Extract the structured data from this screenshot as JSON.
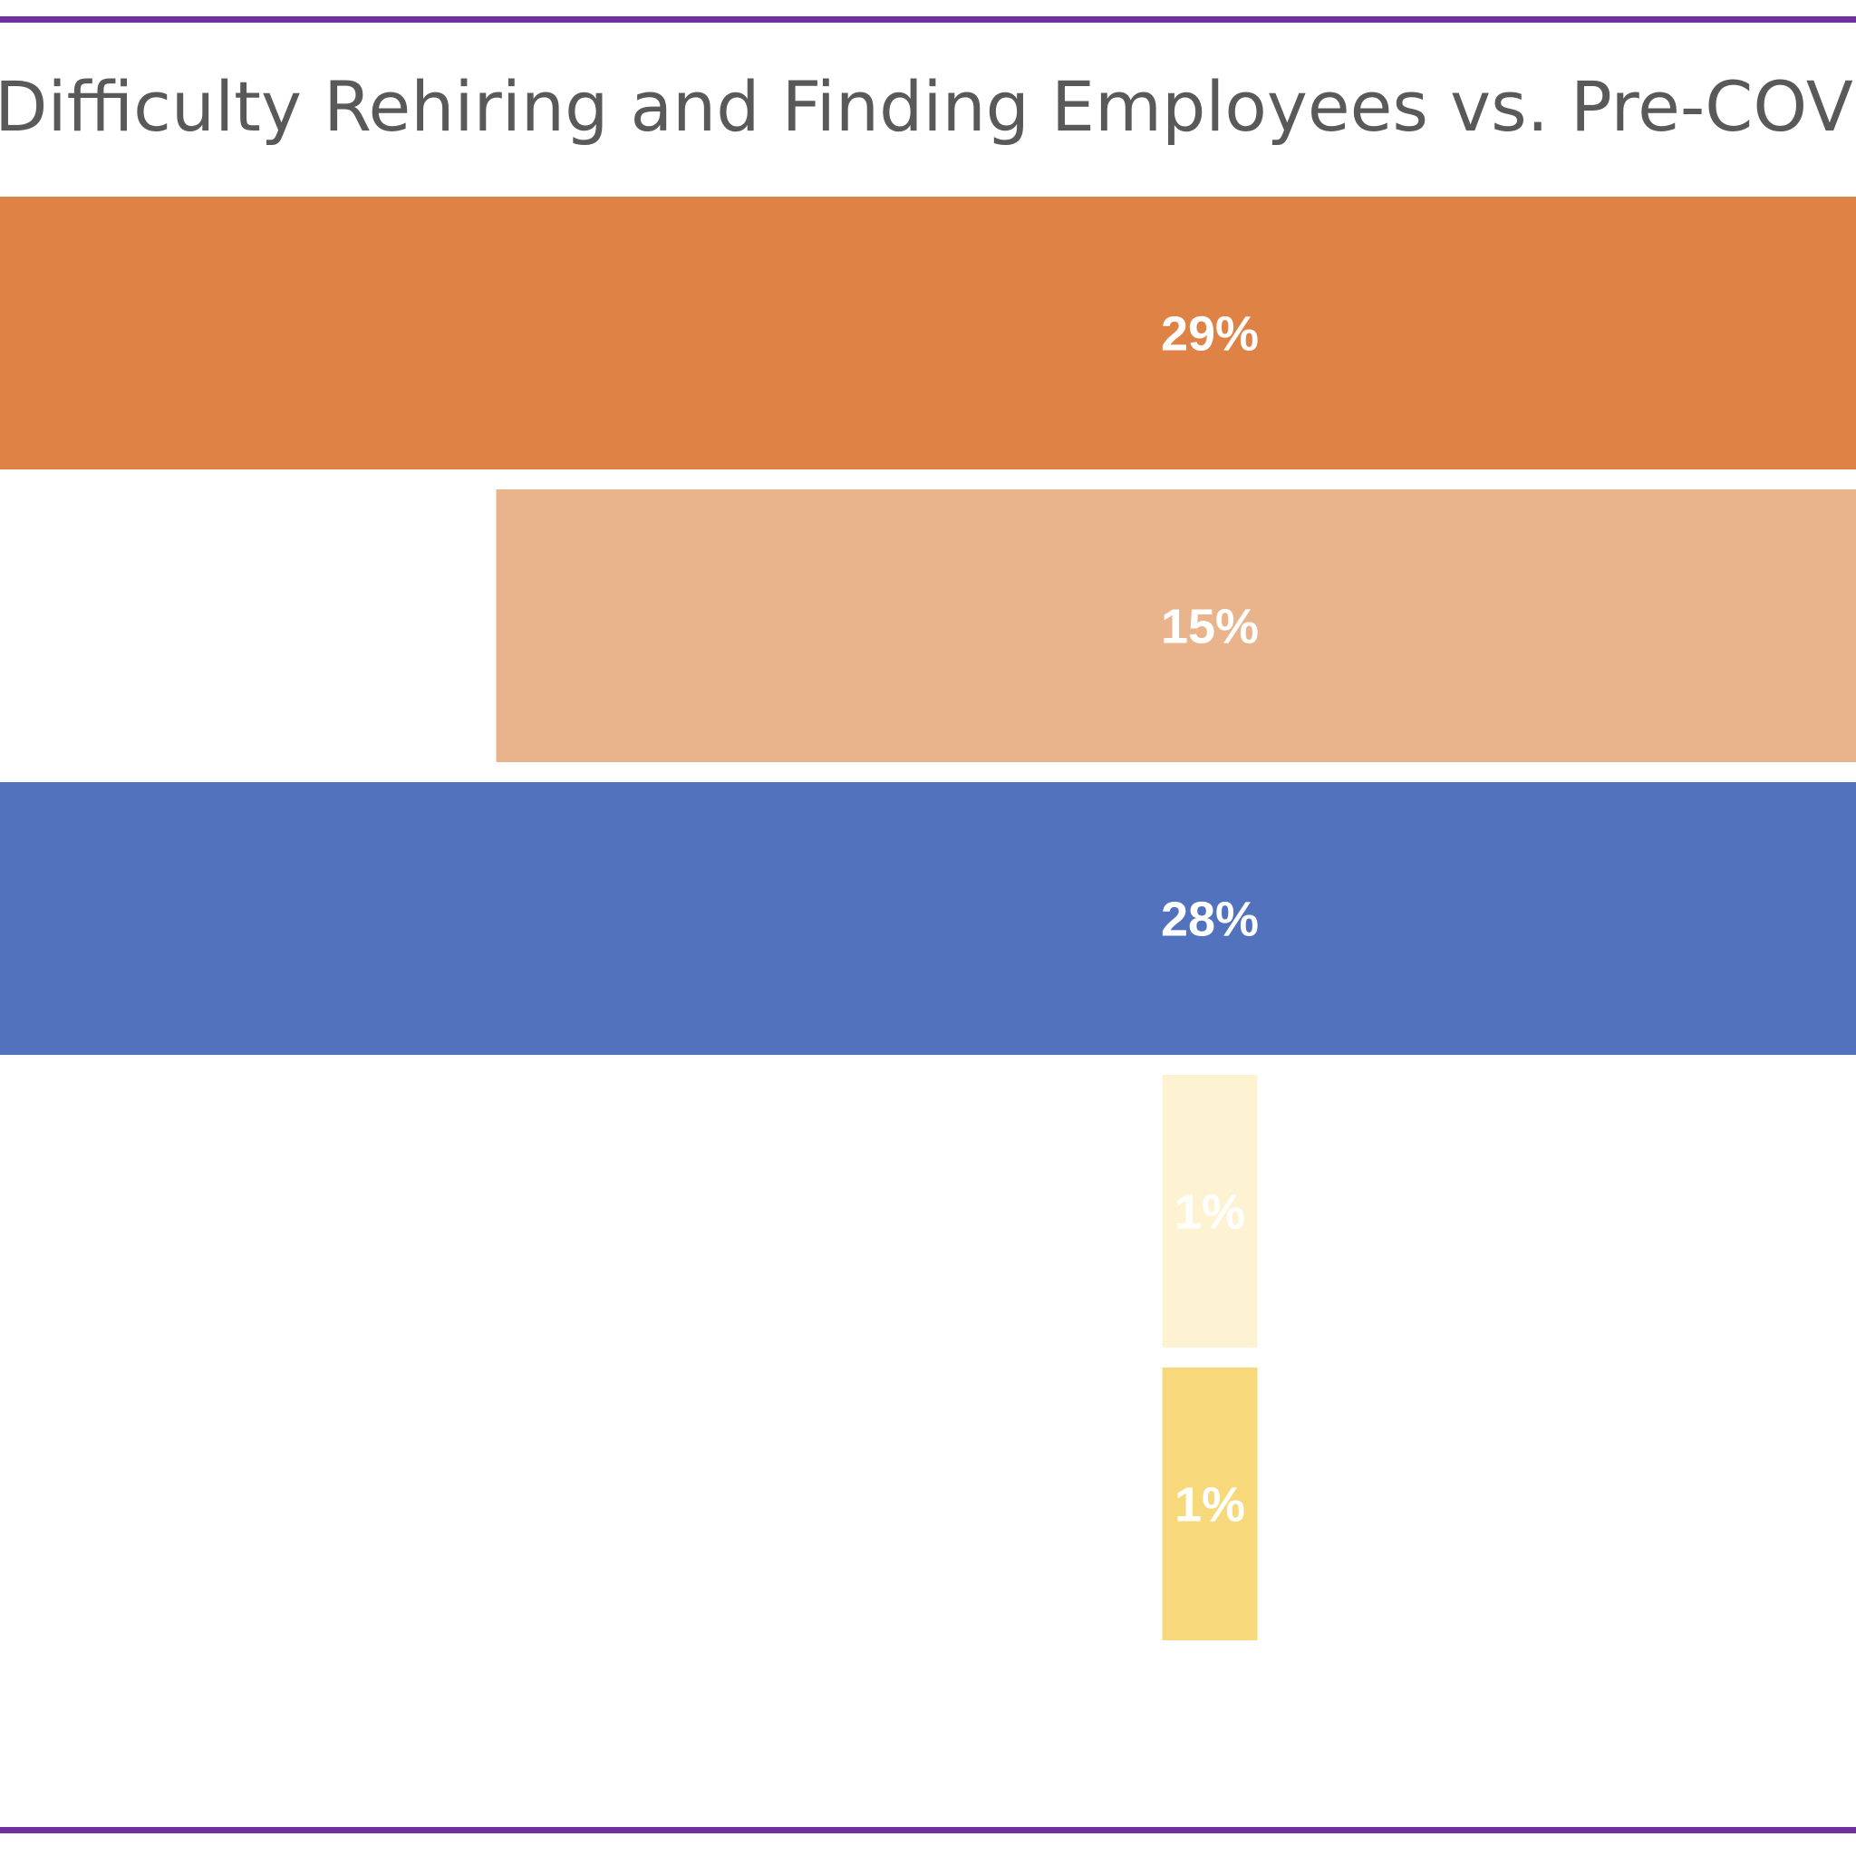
{
  "page": {
    "rule_color": "#7030a0"
  },
  "chart_data": {
    "type": "bar",
    "orientation": "horizontal-funnel",
    "title": "Difficulty Rehiring and Finding Employees vs. Pre-COVID",
    "xlabel": "",
    "ylabel": "",
    "categories": [
      "",
      "",
      "",
      "",
      ""
    ],
    "values": [
      29,
      15,
      28,
      1,
      1
    ],
    "data_labels": [
      "29%",
      "15%",
      "28%",
      "1%",
      "1%"
    ],
    "colors": [
      "#de8245",
      "#e9b48b",
      "#5272bd",
      "#fdf3d3",
      "#f7d97b"
    ],
    "label_color": "#ffffff",
    "grid": false,
    "legend": "none"
  }
}
